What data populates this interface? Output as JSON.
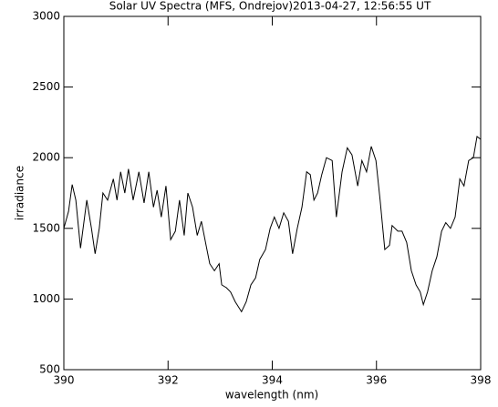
{
  "chart_data": {
    "type": "line",
    "title": "Solar UV Spectra (MFS, Ondrejov)2013-04-27, 12:56:55 UT",
    "x_label": "wavelength (nm)",
    "y_label": "irradiance",
    "x": [
      390.0,
      390.09,
      390.16,
      390.23,
      390.32,
      390.44,
      390.53,
      390.6,
      390.68,
      390.75,
      390.84,
      390.95,
      391.02,
      391.09,
      391.17,
      391.24,
      391.33,
      391.44,
      391.54,
      391.63,
      391.72,
      391.79,
      391.87,
      391.96,
      392.05,
      392.14,
      392.22,
      392.31,
      392.38,
      392.47,
      392.56,
      392.64,
      392.73,
      392.8,
      392.89,
      392.98,
      393.03,
      393.12,
      393.2,
      393.29,
      393.41,
      393.5,
      393.59,
      393.68,
      393.76,
      393.87,
      393.96,
      394.04,
      394.13,
      394.22,
      394.31,
      394.39,
      394.48,
      394.57,
      394.66,
      394.73,
      394.8,
      394.87,
      394.95,
      395.04,
      395.15,
      395.23,
      395.34,
      395.44,
      395.53,
      395.64,
      395.72,
      395.81,
      395.9,
      395.99,
      396.07,
      396.16,
      396.25,
      396.3,
      396.41,
      396.49,
      396.58,
      396.67,
      396.76,
      396.84,
      396.9,
      396.98,
      397.07,
      397.16,
      397.25,
      397.33,
      397.42,
      397.51,
      397.6,
      397.68,
      397.77,
      397.86,
      397.93,
      398.0
    ],
    "series": [
      {
        "name": "irradiance",
        "color": "#000000",
        "values": [
          1500,
          1620,
          1810,
          1700,
          1360,
          1700,
          1500,
          1320,
          1500,
          1750,
          1700,
          1850,
          1700,
          1900,
          1750,
          1920,
          1700,
          1900,
          1680,
          1900,
          1650,
          1770,
          1580,
          1800,
          1420,
          1480,
          1700,
          1450,
          1750,
          1650,
          1450,
          1550,
          1380,
          1250,
          1200,
          1250,
          1100,
          1080,
          1050,
          980,
          910,
          980,
          1100,
          1150,
          1280,
          1350,
          1500,
          1580,
          1500,
          1610,
          1550,
          1320,
          1500,
          1650,
          1900,
          1880,
          1700,
          1750,
          1880,
          2000,
          1980,
          1580,
          1900,
          2070,
          2020,
          1800,
          1980,
          1900,
          2080,
          1980,
          1700,
          1350,
          1380,
          1520,
          1480,
          1480,
          1400,
          1200,
          1100,
          1050,
          960,
          1050,
          1200,
          1300,
          1480,
          1540,
          1500,
          1580,
          1850,
          1800,
          1980,
          2000,
          2150,
          2130
        ]
      }
    ],
    "xlim": [
      390,
      398
    ],
    "xticks": [
      390,
      392,
      394,
      396,
      398
    ],
    "ylim": [
      500,
      3000
    ],
    "yticks": [
      500,
      1000,
      1500,
      2000,
      2500,
      3000
    ]
  }
}
